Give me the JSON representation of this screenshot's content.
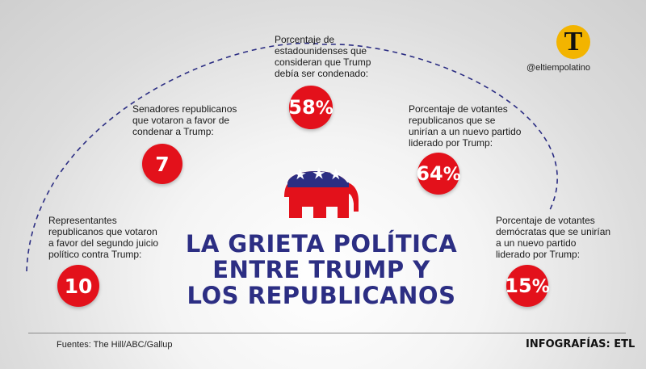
{
  "stats": [
    {
      "text_lines": [
        "Representantes",
        "republicanos que votaron",
        "a favor del segundo juicio",
        "político contra Trump:"
      ],
      "value": "10",
      "unit": ""
    },
    {
      "text_lines": [
        "Senadores republicanos",
        "que votaron a favor de",
        "condenar a Trump:"
      ],
      "value": "7",
      "unit": ""
    },
    {
      "text_lines": [
        "Porcentaje de",
        "estadounidenses que",
        "consideran que Trump",
        "debía ser condenado:"
      ],
      "value": "58",
      "unit": "%"
    },
    {
      "text_lines": [
        "Porcentaje de votantes",
        "republicanos que se",
        "unirían a un nuevo partido",
        "liderado por Trump:"
      ],
      "value": "64",
      "unit": "%"
    },
    {
      "text_lines": [
        "Porcentaje de votantes",
        "demócratas que se unirían",
        "a un nuevo partido",
        "liderado por Trump:"
      ],
      "value": "15",
      "unit": "%"
    }
  ],
  "title_lines": [
    "LA GRIETA POLÍTICA",
    "ENTRE TRUMP Y",
    "LOS REPUBLICANOS"
  ],
  "logo": {
    "letter": "T",
    "handle": "@eltiempolatino"
  },
  "footer": {
    "sources": "Fuentes: The Hill/ABC/Gallup",
    "credits": "INFOGRAFÍAS: ETL"
  },
  "colors": {
    "accent": "#e3111b",
    "navy": "#2c2e83",
    "logo_gold": "#f3b400"
  }
}
